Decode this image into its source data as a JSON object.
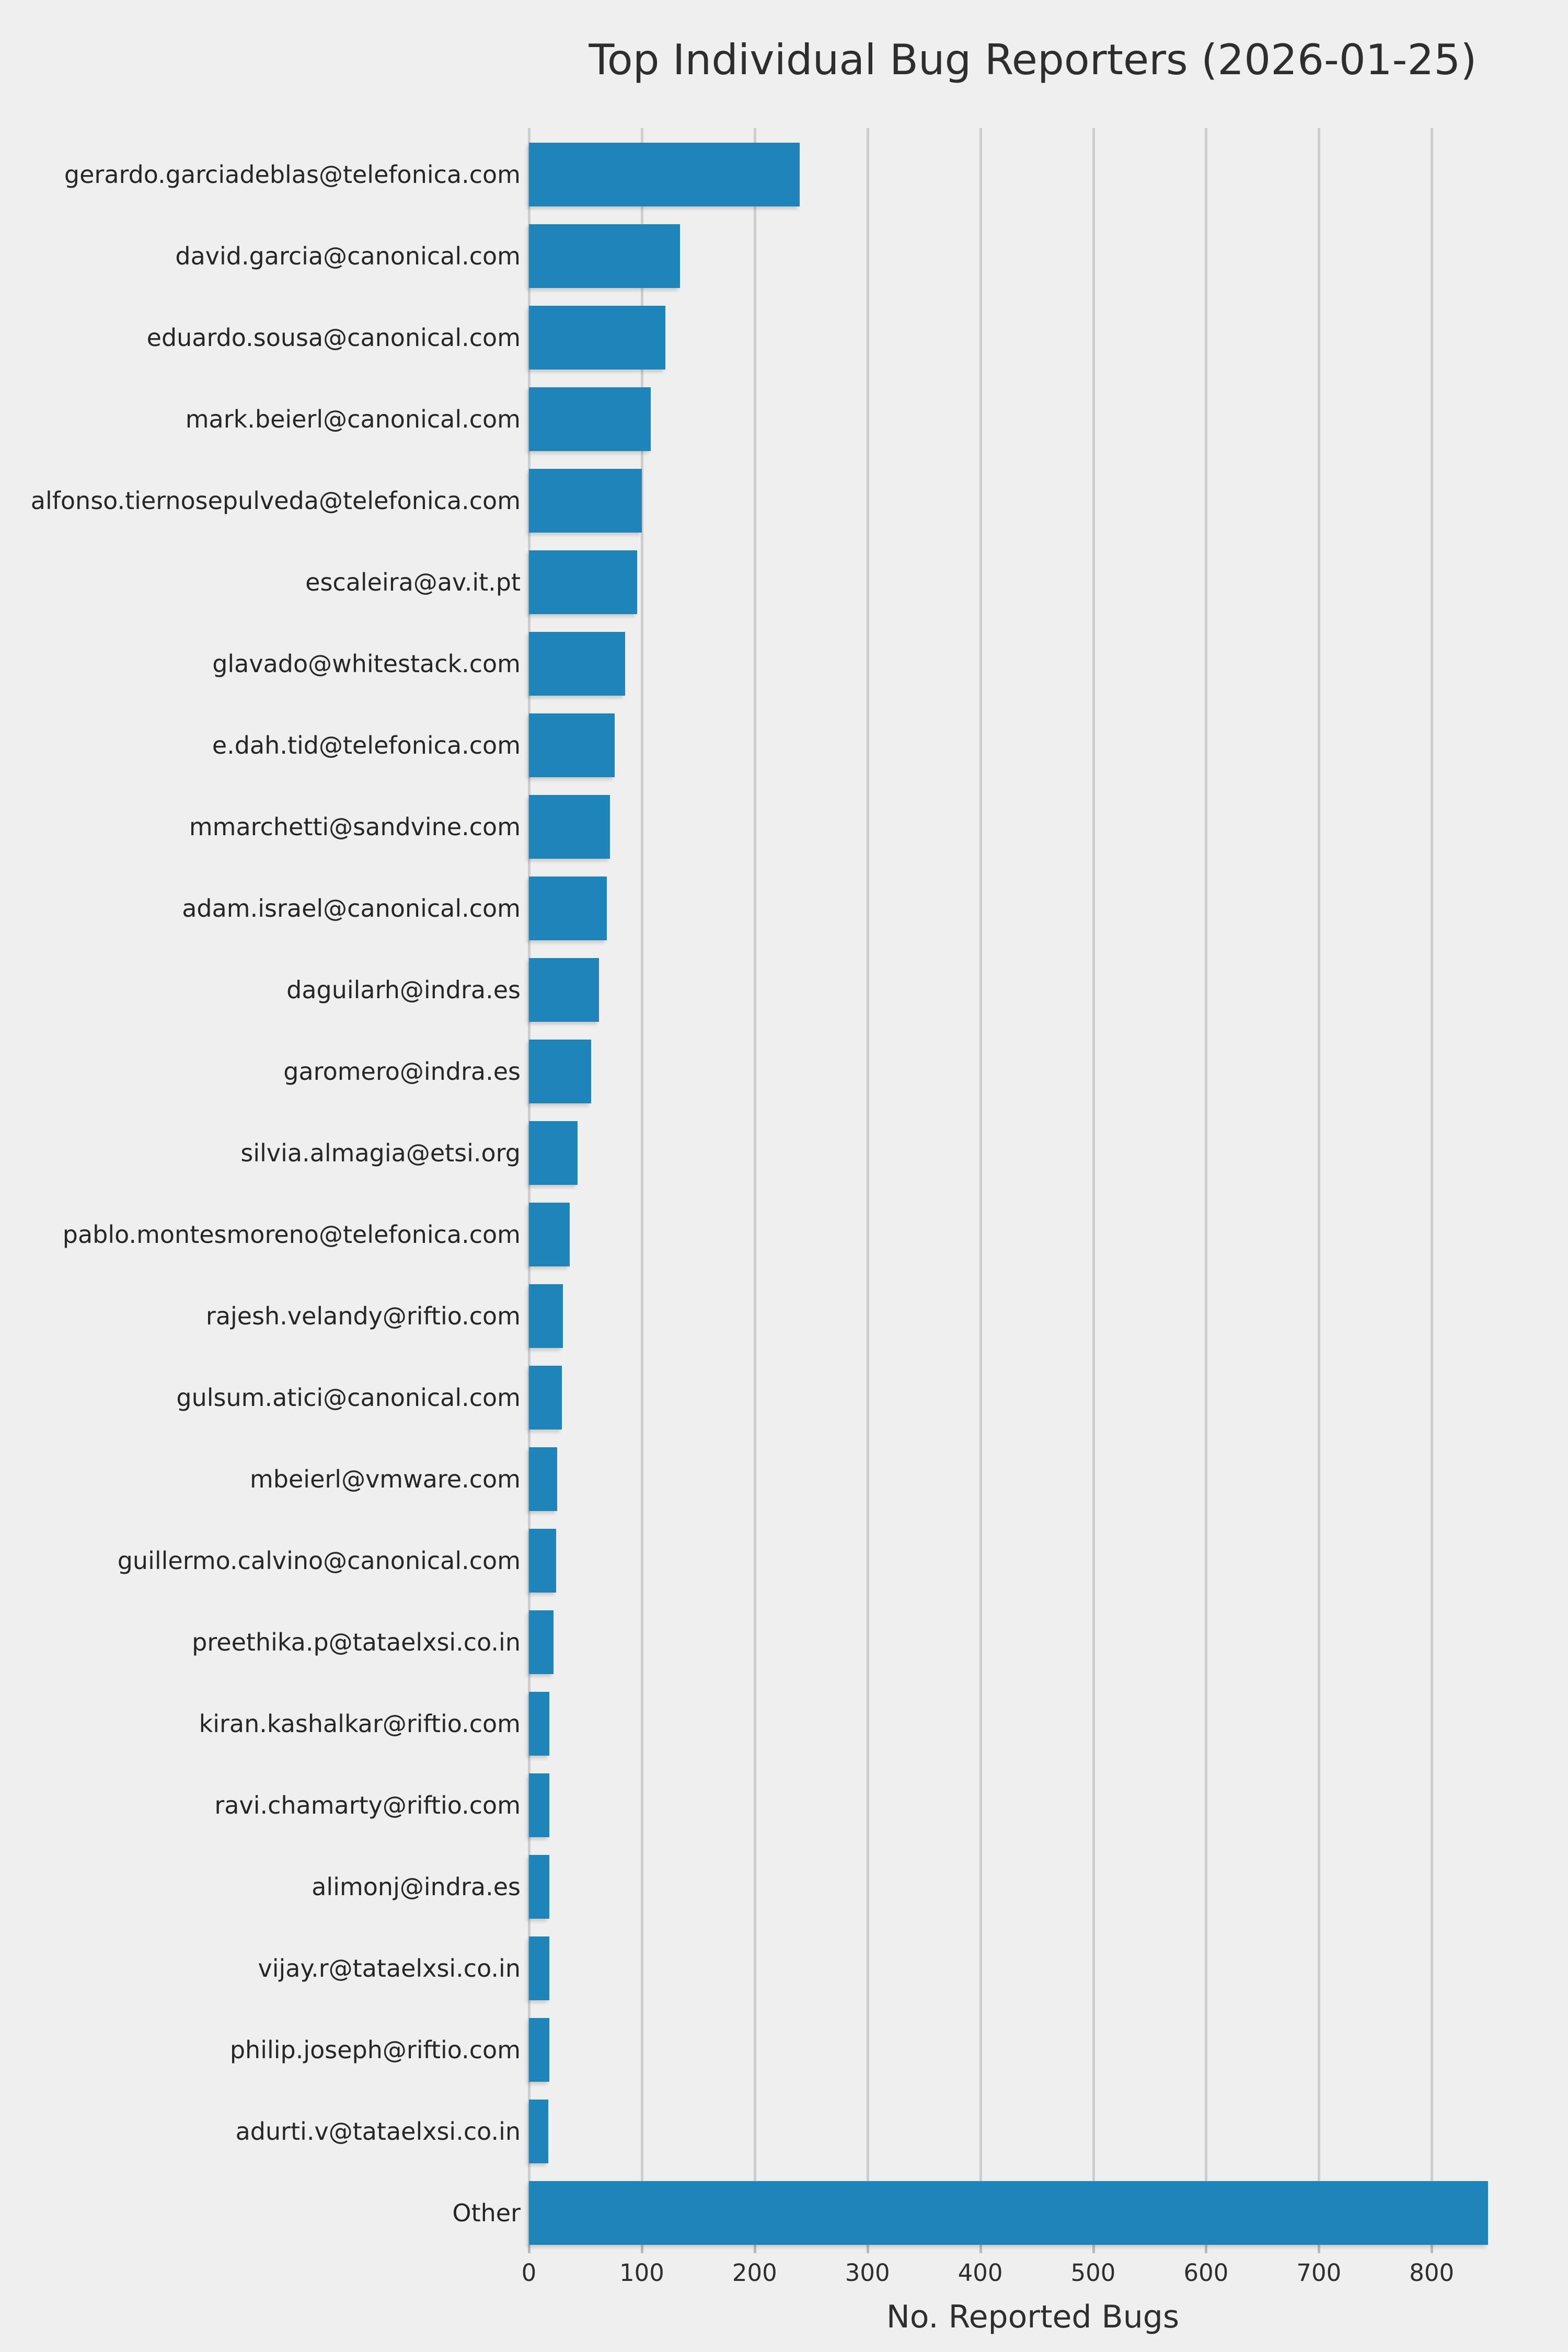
{
  "title": "Top Individual Bug Reporters (2026-01-25)",
  "xlabel": "No. Reported Bugs",
  "x_ticks": [
    0,
    100,
    200,
    300,
    400,
    500,
    600,
    700,
    800
  ],
  "colors": {
    "bar": "#1e84ba",
    "background": "#efefef",
    "gridline": "#cdcdcd",
    "text": "#2e2e2e"
  },
  "chart_data": {
    "type": "bar",
    "orientation": "horizontal",
    "title": "Top Individual Bug Reporters (2026-01-25)",
    "xlabel": "No. Reported Bugs",
    "ylabel": "",
    "xlim": [
      0,
      893
    ],
    "grid": true,
    "legend": false,
    "categories": [
      "gerardo.garciadeblas@telefonica.com",
      "david.garcia@canonical.com",
      "eduardo.sousa@canonical.com",
      "mark.beierl@canonical.com",
      "alfonso.tiernosepulveda@telefonica.com",
      "escaleira@av.it.pt",
      "glavado@whitestack.com",
      "e.dah.tid@telefonica.com",
      "mmarchetti@sandvine.com",
      "adam.israel@canonical.com",
      "daguilarh@indra.es",
      "garomero@indra.es",
      "silvia.almagia@etsi.org",
      "pablo.montesmoreno@telefonica.com",
      "rajesh.velandy@riftio.com",
      "gulsum.atici@canonical.com",
      "mbeierl@vmware.com",
      "guillermo.calvino@canonical.com",
      "preethika.p@tataelxsi.co.in",
      "kiran.kashalkar@riftio.com",
      "ravi.chamarty@riftio.com",
      "alimonj@indra.es",
      "vijay.r@tataelxsi.co.in",
      "philip.joseph@riftio.com",
      "adurti.v@tataelxsi.co.in",
      "Other"
    ],
    "values": [
      240,
      134,
      121,
      108,
      100,
      96,
      85,
      76,
      72,
      69,
      62,
      55,
      43,
      36,
      30,
      29,
      25,
      24,
      22,
      18,
      18,
      18,
      18,
      18,
      17,
      850
    ]
  }
}
